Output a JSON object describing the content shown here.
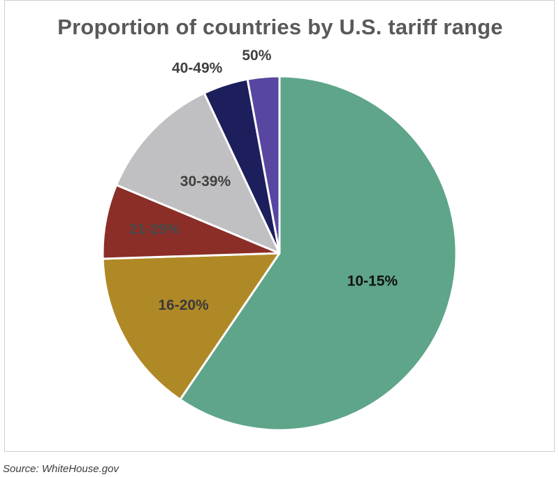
{
  "chart_data": {
    "type": "pie",
    "title": "Proportion of countries by U.S. tariff range",
    "start_angle_deg": 0,
    "direction": "clockwise",
    "slices": [
      {
        "label": "10-15%",
        "value": 59.5,
        "color": "#5ea58a",
        "label_color": "#111111"
      },
      {
        "label": "16-20%",
        "value": 15.0,
        "color": "#b08927",
        "label_color": "#3a3a3a"
      },
      {
        "label": "21-29%",
        "value": 6.8,
        "color": "#8b2e27",
        "label_color": "#4a4a4a"
      },
      {
        "label": "30-39%",
        "value": 11.7,
        "color": "#c0bfc2",
        "label_color": "#404040"
      },
      {
        "label": "40-49%",
        "value": 4.1,
        "color": "#1c1f5c",
        "label_color": "#404040"
      },
      {
        "label": "50%",
        "value": 2.9,
        "color": "#5846a0",
        "label_color": "#404040"
      }
    ]
  },
  "source": "Source: WhiteHouse.gov"
}
